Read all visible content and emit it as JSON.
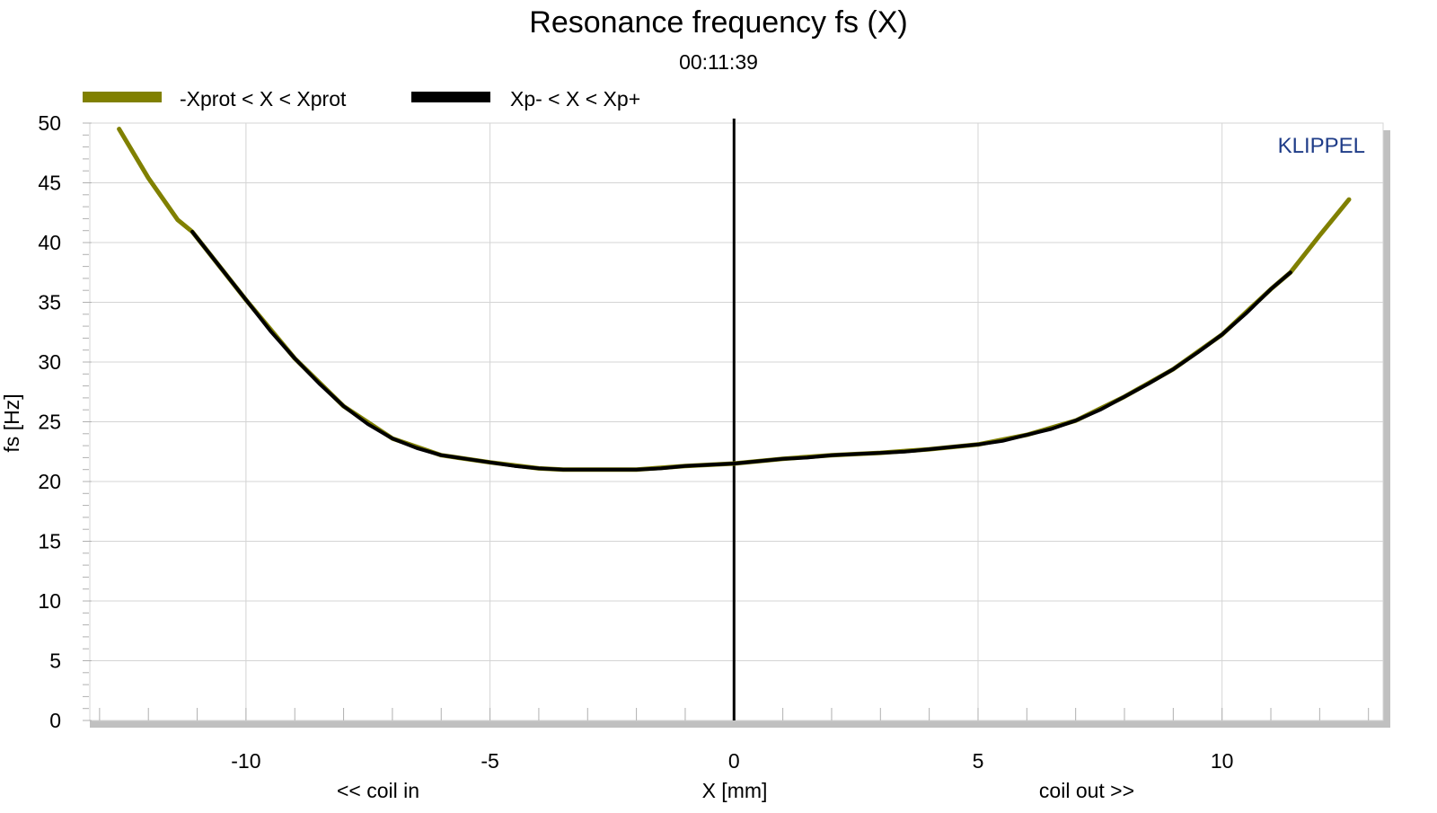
{
  "chart_data": {
    "type": "line",
    "title": "Resonance frequency fs (X)",
    "subtitle": "00:11:39",
    "xlabel": "X [mm]",
    "ylabel": "fs [Hz]",
    "xlabel_left": "<< coil in",
    "xlabel_right": "coil out >>",
    "watermark": "KLIPPEL",
    "xlim": [
      -13.2,
      13.3
    ],
    "ylim": [
      0,
      50
    ],
    "x_ticks": [
      -10,
      -5,
      0,
      5,
      10
    ],
    "y_ticks": [
      0,
      5,
      10,
      15,
      20,
      25,
      30,
      35,
      40,
      45,
      50
    ],
    "grid": true,
    "legend_position": "top-left",
    "series": [
      {
        "name": "-Xprot < X < Xprot",
        "color": "#808000",
        "x": [
          -12.6,
          -12.0,
          -11.4,
          -11.1,
          -10.0,
          -9.0,
          -8.0,
          -7.0,
          -6.0,
          -5.0,
          -4.0,
          -3.5,
          -3.0,
          -2.0,
          -1.0,
          0.0,
          1.0,
          2.0,
          3.0,
          4.0,
          5.0,
          6.0,
          7.0,
          8.0,
          9.0,
          10.0,
          11.0,
          11.4,
          12.0,
          12.6
        ],
        "values": [
          49.5,
          45.4,
          41.9,
          40.9,
          35.2,
          30.3,
          26.3,
          23.6,
          22.2,
          21.6,
          21.1,
          21.0,
          21.0,
          21.0,
          21.3,
          21.5,
          21.9,
          22.2,
          22.4,
          22.7,
          23.1,
          23.9,
          25.1,
          27.1,
          29.4,
          32.3,
          36.1,
          37.5,
          40.6,
          43.6
        ]
      },
      {
        "name": "Xp- < X < Xp+",
        "color": "#000000",
        "x": [
          -11.1,
          -10.5,
          -10.0,
          -9.5,
          -9.0,
          -8.5,
          -8.0,
          -7.5,
          -7.0,
          -6.5,
          -6.0,
          -5.5,
          -5.0,
          -4.5,
          -4.0,
          -3.5,
          -3.0,
          -2.5,
          -2.0,
          -1.5,
          -1.0,
          -0.5,
          0.0,
          0.5,
          1.0,
          1.5,
          2.0,
          2.5,
          3.0,
          3.5,
          4.0,
          4.5,
          5.0,
          5.5,
          6.0,
          6.5,
          7.0,
          7.5,
          8.0,
          8.5,
          9.0,
          9.5,
          10.0,
          10.5,
          11.0,
          11.4
        ],
        "values": [
          40.9,
          37.8,
          35.2,
          32.6,
          30.3,
          28.2,
          26.3,
          24.8,
          23.6,
          22.8,
          22.2,
          21.9,
          21.6,
          21.3,
          21.1,
          21.0,
          21.0,
          21.0,
          21.0,
          21.1,
          21.3,
          21.4,
          21.5,
          21.7,
          21.9,
          22.0,
          22.2,
          22.3,
          22.4,
          22.5,
          22.7,
          22.9,
          23.1,
          23.4,
          23.9,
          24.4,
          25.1,
          26.0,
          27.1,
          28.2,
          29.4,
          30.8,
          32.3,
          34.1,
          36.1,
          37.5
        ]
      }
    ]
  }
}
